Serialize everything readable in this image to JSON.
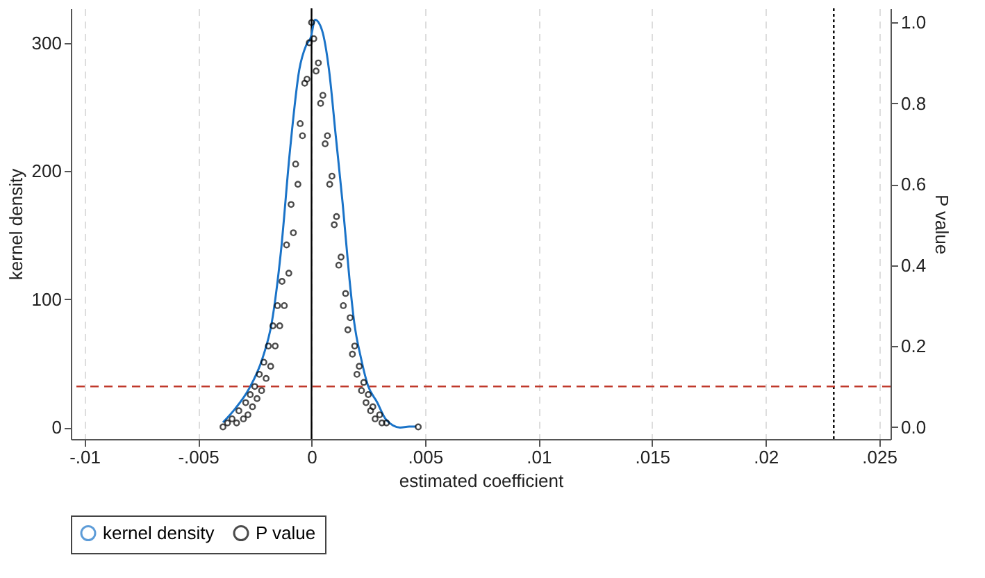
{
  "chart_data": {
    "type": "line",
    "xlabel": "estimated coefficient",
    "ylabel": "kernel density",
    "y2label": "P value",
    "xlim": [
      -0.0106,
      0.0255
    ],
    "xticks": [
      {
        "value": -0.01,
        "label": "-.01"
      },
      {
        "value": -0.005,
        "label": "-.005"
      },
      0,
      {
        "value": 0.005,
        "label": ".005"
      },
      {
        "value": 0.01,
        "label": ".01"
      },
      {
        "value": 0.015,
        "label": ".015"
      },
      {
        "value": 0.02,
        "label": ".02"
      },
      {
        "value": 0.025,
        "label": ".025"
      }
    ],
    "ylim": [
      -9,
      327
    ],
    "yticks": [
      0,
      100,
      200,
      300
    ],
    "y2lim": [
      -0.03,
      1.035
    ],
    "y2ticks": [
      {
        "value": 0,
        "label": "0.0"
      },
      {
        "value": 0.2,
        "label": "0.2"
      },
      {
        "value": 0.4,
        "label": "0.4"
      },
      {
        "value": 0.6,
        "label": "0.6"
      },
      {
        "value": 0.8,
        "label": "0.8"
      },
      {
        "value": 1,
        "label": "1.0"
      }
    ],
    "grid": "x",
    "legend": "bottom",
    "ref_lines": [
      {
        "axis": "x",
        "value": 0,
        "color": "#000000",
        "line_style": "solid"
      },
      {
        "axis": "x",
        "value": 0.023,
        "color": "#000000",
        "line_style": "dotted"
      },
      {
        "axis": "y2",
        "value": 0.1,
        "color": "#c0392b",
        "line_style": "dashed"
      }
    ],
    "series": [
      {
        "name": "kernel density",
        "color": "#1a73c8",
        "line_style": "solid",
        "x": [
          -0.0039,
          -0.00337,
          -0.00276,
          -0.00216,
          -0.00175,
          -0.00135,
          -0.00095,
          -0.00054,
          -0.00024,
          -4e-05,
          0.00016,
          0.00046,
          0.00077,
          0.00107,
          0.00137,
          0.00167,
          0.00188,
          0.00218,
          0.00248,
          0.00288,
          0.00329,
          0.0039,
          0.0043,
          0.0046
        ],
        "values": [
          4,
          14.5,
          30,
          54,
          82,
          137,
          216,
          279,
          298,
          304,
          318,
          310,
          279,
          227,
          175,
          116,
          82,
          54,
          33,
          20,
          6,
          0,
          0.7,
          0.7
        ]
      },
      {
        "name": "P value",
        "type": "scatter",
        "axis": "y2",
        "color": "#000000",
        "marker": "circle",
        "x": [
          -0.0039,
          -0.0037,
          -0.0035,
          -0.0033,
          -0.0032,
          -0.003,
          -0.0029,
          -0.0028,
          -0.0027,
          -0.0026,
          -0.0025,
          -0.0024,
          -0.0023,
          -0.0022,
          -0.0021,
          -0.002,
          -0.0019,
          -0.0018,
          -0.0017,
          -0.0016,
          -0.0015,
          -0.0014,
          -0.0013,
          -0.0012,
          -0.0011,
          -0.001,
          -0.0009,
          -0.0008,
          -0.0007,
          -0.0006,
          -0.0005,
          -0.0004,
          -0.0003,
          -0.0002,
          -0.0001,
          0.0,
          0.0001,
          0.0002,
          0.0003,
          0.0004,
          0.0005,
          0.0006,
          0.0007,
          0.0008,
          0.0009,
          0.001,
          0.0011,
          0.0012,
          0.0013,
          0.0014,
          0.0015,
          0.0016,
          0.0017,
          0.0018,
          0.0019,
          0.002,
          0.0021,
          0.0022,
          0.0023,
          0.0024,
          0.0025,
          0.0026,
          0.0027,
          0.0028,
          0.003,
          0.0031,
          0.0033,
          0.0047
        ],
        "values": [
          0.0,
          0.01,
          0.02,
          0.01,
          0.04,
          0.02,
          0.06,
          0.03,
          0.08,
          0.05,
          0.1,
          0.07,
          0.13,
          0.09,
          0.16,
          0.12,
          0.2,
          0.15,
          0.25,
          0.2,
          0.3,
          0.25,
          0.36,
          0.3,
          0.45,
          0.38,
          0.55,
          0.48,
          0.65,
          0.6,
          0.75,
          0.72,
          0.85,
          0.86,
          0.95,
          1.0,
          0.96,
          0.88,
          0.9,
          0.8,
          0.82,
          0.7,
          0.72,
          0.6,
          0.62,
          0.5,
          0.52,
          0.4,
          0.42,
          0.3,
          0.33,
          0.24,
          0.27,
          0.18,
          0.2,
          0.13,
          0.15,
          0.09,
          0.11,
          0.06,
          0.08,
          0.04,
          0.05,
          0.02,
          0.03,
          0.01,
          0.01,
          0.0
        ]
      }
    ]
  }
}
